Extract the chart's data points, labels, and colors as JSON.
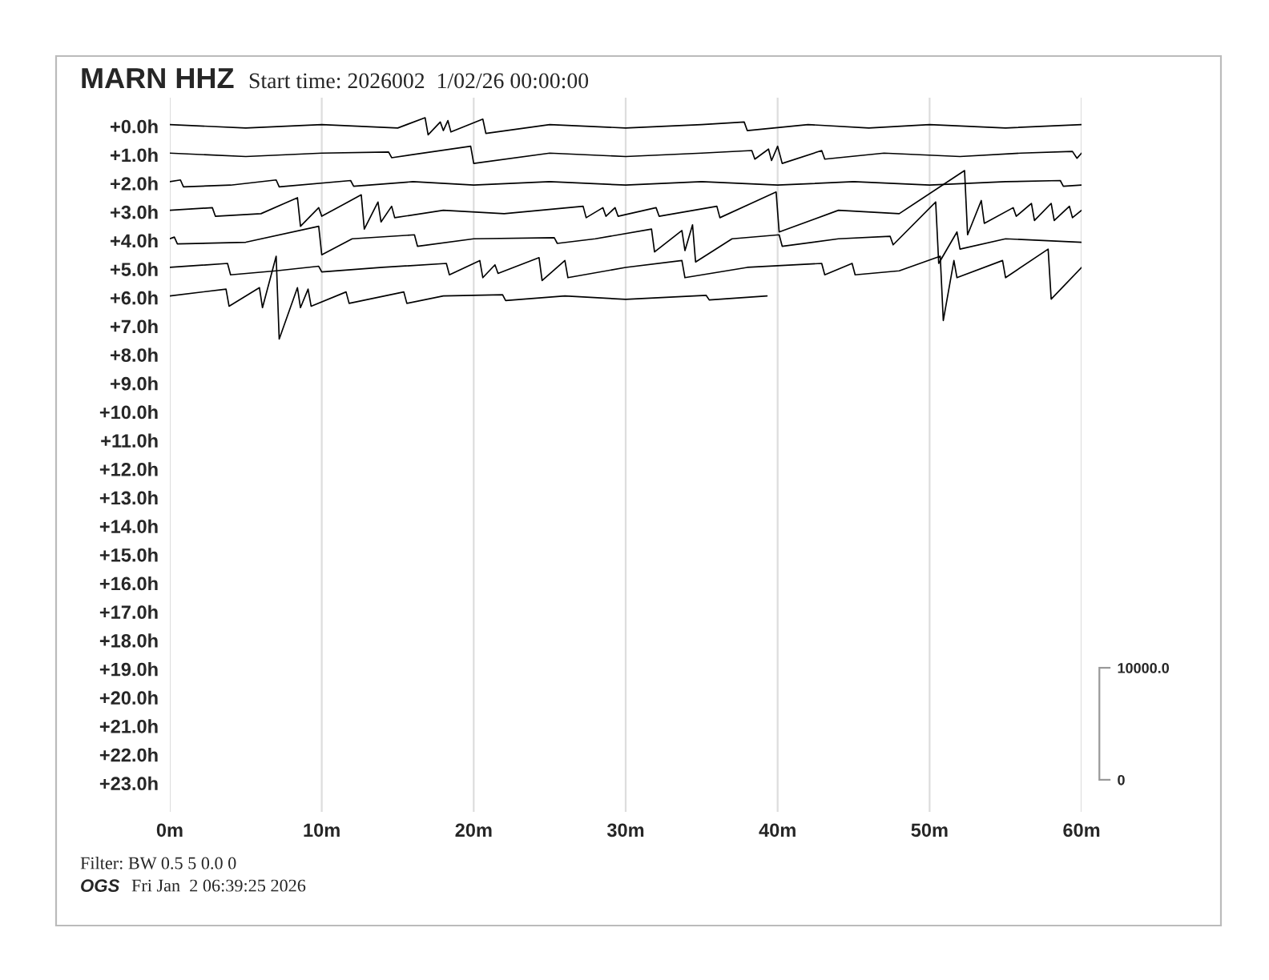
{
  "chart_data": {
    "type": "line",
    "title": "MARN HHZ",
    "subtitle": "Start time: 2026002  1/02/26 00:00:00",
    "annotations": [
      "Filter: BW 0.5 5 0.0 0",
      "OGS",
      "Fri Jan  2 06:39:25 2026"
    ],
    "xlim": [
      0,
      60
    ],
    "xticks": [
      {
        "value": 0,
        "label": "0m"
      },
      {
        "value": 10,
        "label": "10m"
      },
      {
        "value": 20,
        "label": "20m"
      },
      {
        "value": 30,
        "label": "30m"
      },
      {
        "value": 40,
        "label": "40m"
      },
      {
        "value": 50,
        "label": "50m"
      },
      {
        "value": 60,
        "label": "60m"
      }
    ],
    "ylim": [
      24,
      -1
    ],
    "yticks": [
      {
        "value": 0,
        "label": "+0.0h"
      },
      {
        "value": 1,
        "label": "+1.0h"
      },
      {
        "value": 2,
        "label": "+2.0h"
      },
      {
        "value": 3,
        "label": "+3.0h"
      },
      {
        "value": 4,
        "label": "+4.0h"
      },
      {
        "value": 5,
        "label": "+5.0h"
      },
      {
        "value": 6,
        "label": "+6.0h"
      },
      {
        "value": 7,
        "label": "+7.0h"
      },
      {
        "value": 8,
        "label": "+8.0h"
      },
      {
        "value": 9,
        "label": "+9.0h"
      },
      {
        "value": 10,
        "label": "+10.0h"
      },
      {
        "value": 11,
        "label": "+11.0h"
      },
      {
        "value": 12,
        "label": "+12.0h"
      },
      {
        "value": 13,
        "label": "+13.0h"
      },
      {
        "value": 14,
        "label": "+14.0h"
      },
      {
        "value": 15,
        "label": "+15.0h"
      },
      {
        "value": 16,
        "label": "+16.0h"
      },
      {
        "value": 17,
        "label": "+17.0h"
      },
      {
        "value": 18,
        "label": "+18.0h"
      },
      {
        "value": 19,
        "label": "+19.0h"
      },
      {
        "value": 20,
        "label": "+20.0h"
      },
      {
        "value": 21,
        "label": "+21.0h"
      },
      {
        "value": 22,
        "label": "+22.0h"
      },
      {
        "value": 23,
        "label": "+23.0h"
      }
    ],
    "y2lim": [
      -2860,
      60900
    ],
    "y2ticks": [
      {
        "value": 0,
        "label": "0"
      },
      {
        "value": 10000,
        "label": "10000.0"
      }
    ],
    "grid": "x",
    "series": [
      {
        "color": "#000000",
        "x": [
          0,
          5,
          10,
          15,
          16.8,
          17.0,
          17.8,
          18.0,
          18.3,
          18.5,
          20.6,
          20.8,
          25,
          30,
          35,
          37.8,
          38.0,
          42,
          46,
          50,
          55,
          60
        ],
        "values": [
          -0.06,
          0.06,
          -0.06,
          0.06,
          -0.3,
          0.3,
          -0.15,
          0.15,
          -0.2,
          0.2,
          -0.25,
          0.25,
          -0.06,
          0.06,
          -0.06,
          -0.15,
          0.15,
          -0.06,
          0.06,
          -0.06,
          0.06,
          -0.06
        ]
      },
      {
        "color": "#000000",
        "x": [
          0,
          5,
          10,
          14.4,
          14.6,
          19.8,
          20.0,
          25,
          30,
          35,
          38.3,
          38.5,
          39.4,
          39.6,
          40.0,
          40.3,
          42.9,
          43.1,
          47,
          52,
          56,
          59.4,
          59.7,
          60
        ],
        "values": [
          0.94,
          1.06,
          0.94,
          0.9,
          1.1,
          0.7,
          1.3,
          0.94,
          1.06,
          0.94,
          0.85,
          1.15,
          0.8,
          1.2,
          0.7,
          1.3,
          0.85,
          1.15,
          0.94,
          1.06,
          0.94,
          0.88,
          1.12,
          0.94
        ]
      },
      {
        "color": "#000000",
        "x": [
          0,
          0.7,
          0.9,
          4,
          7.0,
          7.2,
          11.9,
          12.1,
          16,
          20,
          25,
          30,
          35,
          40,
          45,
          50,
          55,
          58.6,
          58.8,
          60
        ],
        "values": [
          1.94,
          1.88,
          2.12,
          2.06,
          1.88,
          2.12,
          1.9,
          2.1,
          1.94,
          2.06,
          1.94,
          2.06,
          1.94,
          2.06,
          1.94,
          2.06,
          1.94,
          1.9,
          2.1,
          2.06
        ]
      },
      {
        "color": "#000000",
        "x": [
          0,
          2.8,
          3.0,
          6,
          8.4,
          8.6,
          9.8,
          10.0,
          12.6,
          12.8,
          13.7,
          13.9,
          14.6,
          14.8,
          18,
          22,
          27.2,
          27.4,
          28.5,
          28.7,
          29.3,
          29.5,
          32.0,
          32.2,
          36.0,
          36.2,
          39.9,
          40.1,
          44,
          48,
          52.3,
          52.5,
          53.4,
          53.6,
          55.5,
          55.7,
          56.7,
          56.9,
          58.0,
          58.2,
          59.2,
          59.4,
          60
        ],
        "values": [
          2.94,
          2.85,
          3.15,
          3.06,
          2.5,
          3.5,
          2.85,
          3.15,
          2.4,
          3.6,
          2.65,
          3.35,
          2.8,
          3.2,
          2.94,
          3.06,
          2.8,
          3.2,
          2.85,
          3.15,
          2.85,
          3.15,
          2.85,
          3.15,
          2.8,
          3.2,
          2.3,
          3.7,
          2.94,
          3.06,
          1.55,
          3.8,
          2.6,
          3.4,
          2.85,
          3.15,
          2.7,
          3.3,
          2.7,
          3.3,
          2.8,
          3.2,
          2.94
        ]
      },
      {
        "color": "#000000",
        "x": [
          0,
          0.3,
          0.5,
          5,
          9.8,
          10.0,
          12,
          16.1,
          16.3,
          20,
          25.3,
          25.5,
          28,
          31.7,
          31.9,
          33.7,
          33.9,
          34.4,
          34.6,
          37,
          40.1,
          40.3,
          44,
          47.4,
          47.6,
          50.4,
          50.6,
          51.8,
          52.0,
          55,
          60
        ],
        "values": [
          3.94,
          3.88,
          4.12,
          4.06,
          3.5,
          4.5,
          3.94,
          3.8,
          4.2,
          3.94,
          3.9,
          4.1,
          3.94,
          3.6,
          4.4,
          3.65,
          4.35,
          3.45,
          4.75,
          3.94,
          3.8,
          4.2,
          3.94,
          3.85,
          4.15,
          2.65,
          4.8,
          3.7,
          4.3,
          3.94,
          4.06
        ]
      },
      {
        "color": "#000000",
        "x": [
          0,
          3.8,
          4.0,
          7,
          9.8,
          10.0,
          14,
          18.2,
          18.4,
          20.4,
          20.6,
          21.4,
          21.6,
          24.3,
          24.5,
          26.0,
          26.2,
          30,
          33.7,
          33.9,
          38,
          42.9,
          43.1,
          44.9,
          45.1,
          48,
          50.7,
          50.9,
          51.6,
          51.8,
          54.8,
          55.0,
          57.8,
          58.0,
          60
        ],
        "values": [
          4.94,
          4.8,
          5.2,
          5.06,
          4.9,
          5.1,
          4.94,
          4.8,
          5.2,
          4.7,
          5.3,
          4.85,
          5.15,
          4.6,
          5.4,
          4.7,
          5.3,
          4.94,
          4.7,
          5.3,
          4.94,
          4.8,
          5.2,
          4.8,
          5.2,
          5.06,
          4.55,
          6.8,
          4.7,
          5.3,
          4.7,
          5.3,
          4.3,
          6.05,
          4.94
        ]
      },
      {
        "color": "#000000",
        "x": [
          0,
          3.7,
          3.9,
          5.9,
          6.1,
          7.0,
          7.2,
          8.4,
          8.6,
          9.1,
          9.3,
          11.6,
          11.8,
          15.4,
          15.6,
          18,
          21.9,
          22.1,
          26,
          30,
          35.3,
          35.5,
          39.3
        ],
        "values": [
          5.94,
          5.7,
          6.3,
          5.65,
          6.35,
          4.55,
          7.45,
          5.65,
          6.35,
          5.7,
          6.3,
          5.8,
          6.2,
          5.8,
          6.2,
          5.94,
          5.9,
          6.1,
          5.94,
          6.06,
          5.92,
          6.08,
          5.94
        ]
      }
    ]
  }
}
